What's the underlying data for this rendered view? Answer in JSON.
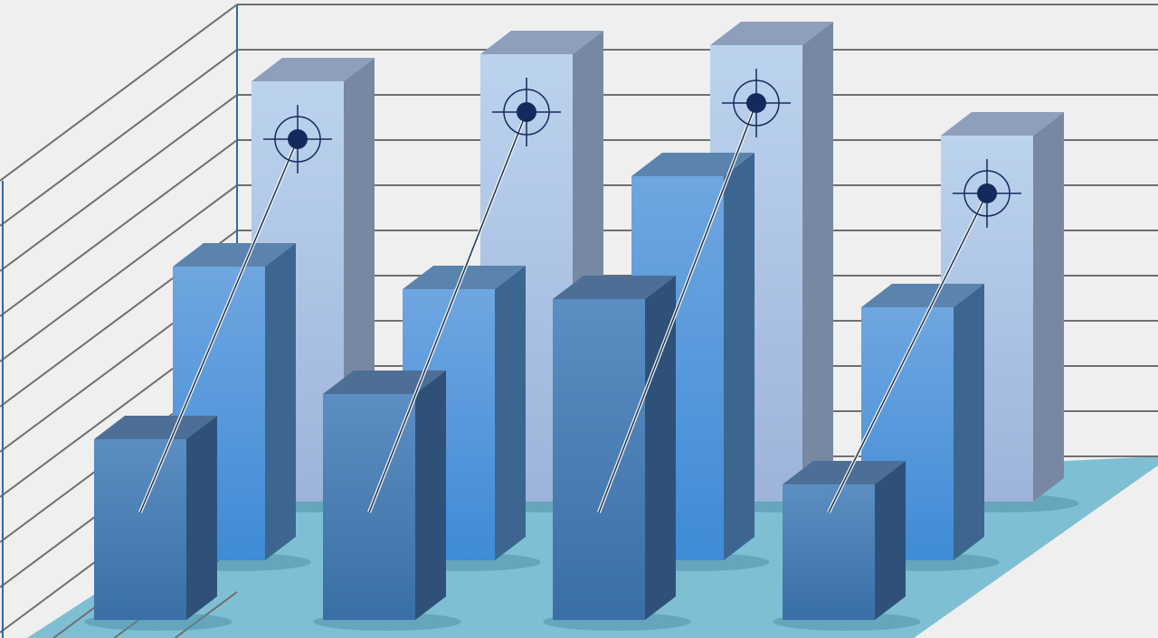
{
  "chart_data": {
    "type": "bar",
    "style": "3d-grouped",
    "title": "",
    "xlabel": "",
    "ylabel": "",
    "grid": true,
    "categories": [
      "",
      "",
      "",
      ""
    ],
    "ylim": [
      0,
      11
    ],
    "series": [
      {
        "values": [
          9.3,
          9.9,
          10.1,
          8.1
        ],
        "color": "#b4cdec"
      },
      {
        "values": [
          6.5,
          6.0,
          8.5,
          5.6
        ],
        "color": "#5b9be0"
      },
      {
        "values": [
          4.0,
          5.0,
          7.1,
          3.0
        ],
        "color": "#4a7fb5"
      }
    ],
    "annotations": {
      "target_marker": "crosshair-target-icon",
      "marker_color": "#152a5c"
    }
  },
  "colors": {
    "wall": "#efefef",
    "grid": "#6f6f6f",
    "floor": "#7fbfd4",
    "axis": "#2f6aa8"
  }
}
